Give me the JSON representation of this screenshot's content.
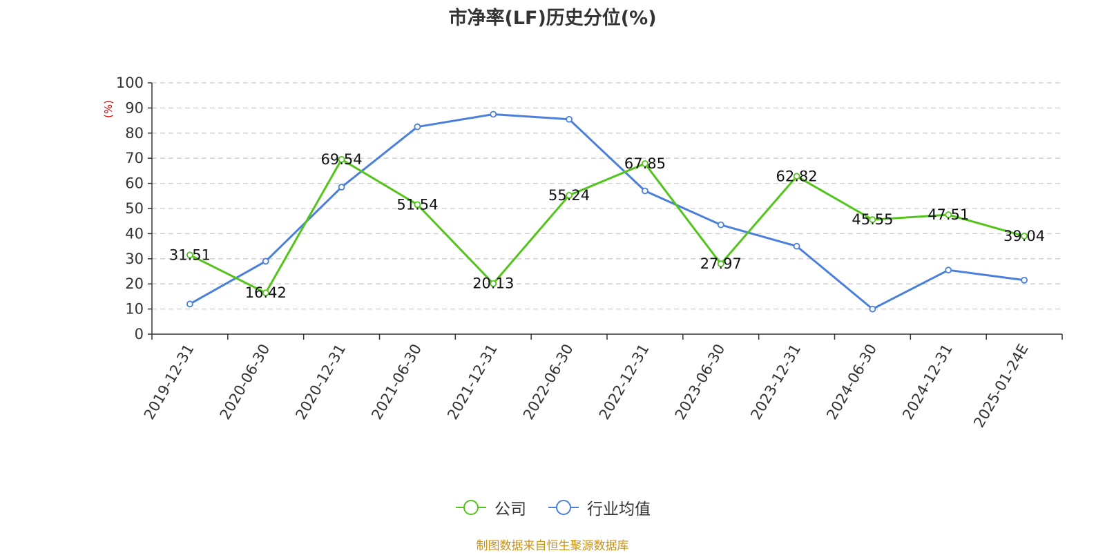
{
  "chart_data": {
    "type": "line",
    "title": "市净率(LF)历史分位(%)",
    "ylabel": "(%)",
    "xlabel": "",
    "ylim": [
      0,
      100
    ],
    "yticks": [
      0,
      10,
      20,
      30,
      40,
      50,
      60,
      70,
      80,
      90,
      100
    ],
    "grid": true,
    "legend_position": "bottom",
    "categories": [
      "2019-12-31",
      "2020-06-30",
      "2020-12-31",
      "2021-06-30",
      "2021-12-31",
      "2022-06-30",
      "2022-12-31",
      "2023-06-30",
      "2023-12-31",
      "2024-06-30",
      "2024-12-31",
      "2025-01-24E"
    ],
    "series": [
      {
        "name": "公司",
        "color": "#52c41a",
        "values": [
          31.51,
          16.42,
          69.54,
          51.54,
          20.13,
          55.24,
          67.85,
          27.97,
          62.82,
          45.55,
          47.51,
          39.04
        ],
        "labels": [
          "31.51",
          "16.42",
          "69.54",
          "51.54",
          "20.13",
          "55.24",
          "67.85",
          "27.97",
          "62.82",
          "45.55",
          "47.51",
          "39.04"
        ]
      },
      {
        "name": "行业均值",
        "color": "#4a7fdb",
        "values": [
          12.0,
          29.0,
          58.5,
          82.5,
          87.5,
          85.5,
          57.0,
          43.5,
          35.0,
          10.0,
          25.5,
          21.5
        ]
      }
    ]
  },
  "legend": {
    "company_label": "公司",
    "industry_label": "行业均值"
  },
  "source_note": "制图数据来自恒生聚源数据库"
}
